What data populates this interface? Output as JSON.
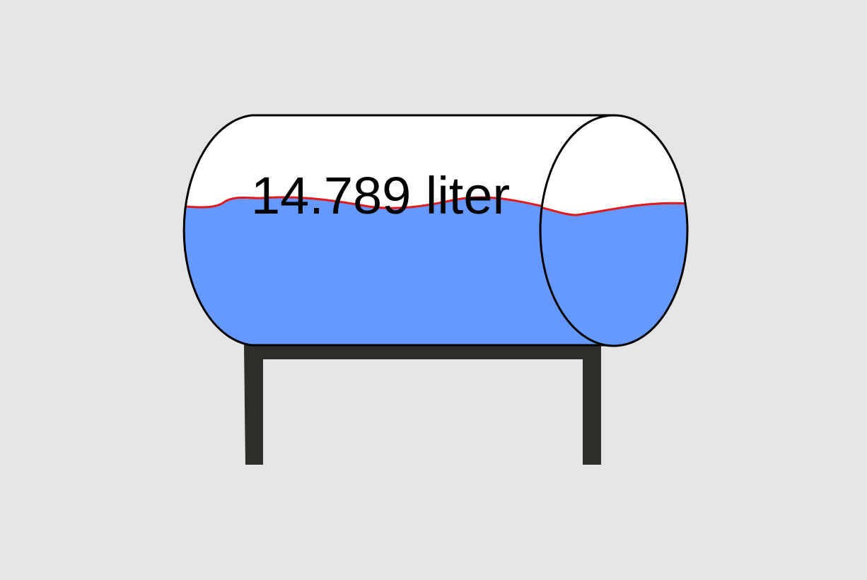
{
  "tank": {
    "volume_label": "14.789 liter",
    "fill_fraction": 0.5,
    "colors": {
      "background": "#e5e5e5",
      "tank_body": "#ffffff",
      "outline": "#000000",
      "liquid": "#6699ff",
      "liquid_surface": "#e31818",
      "stand": "#2f2d2a"
    }
  }
}
